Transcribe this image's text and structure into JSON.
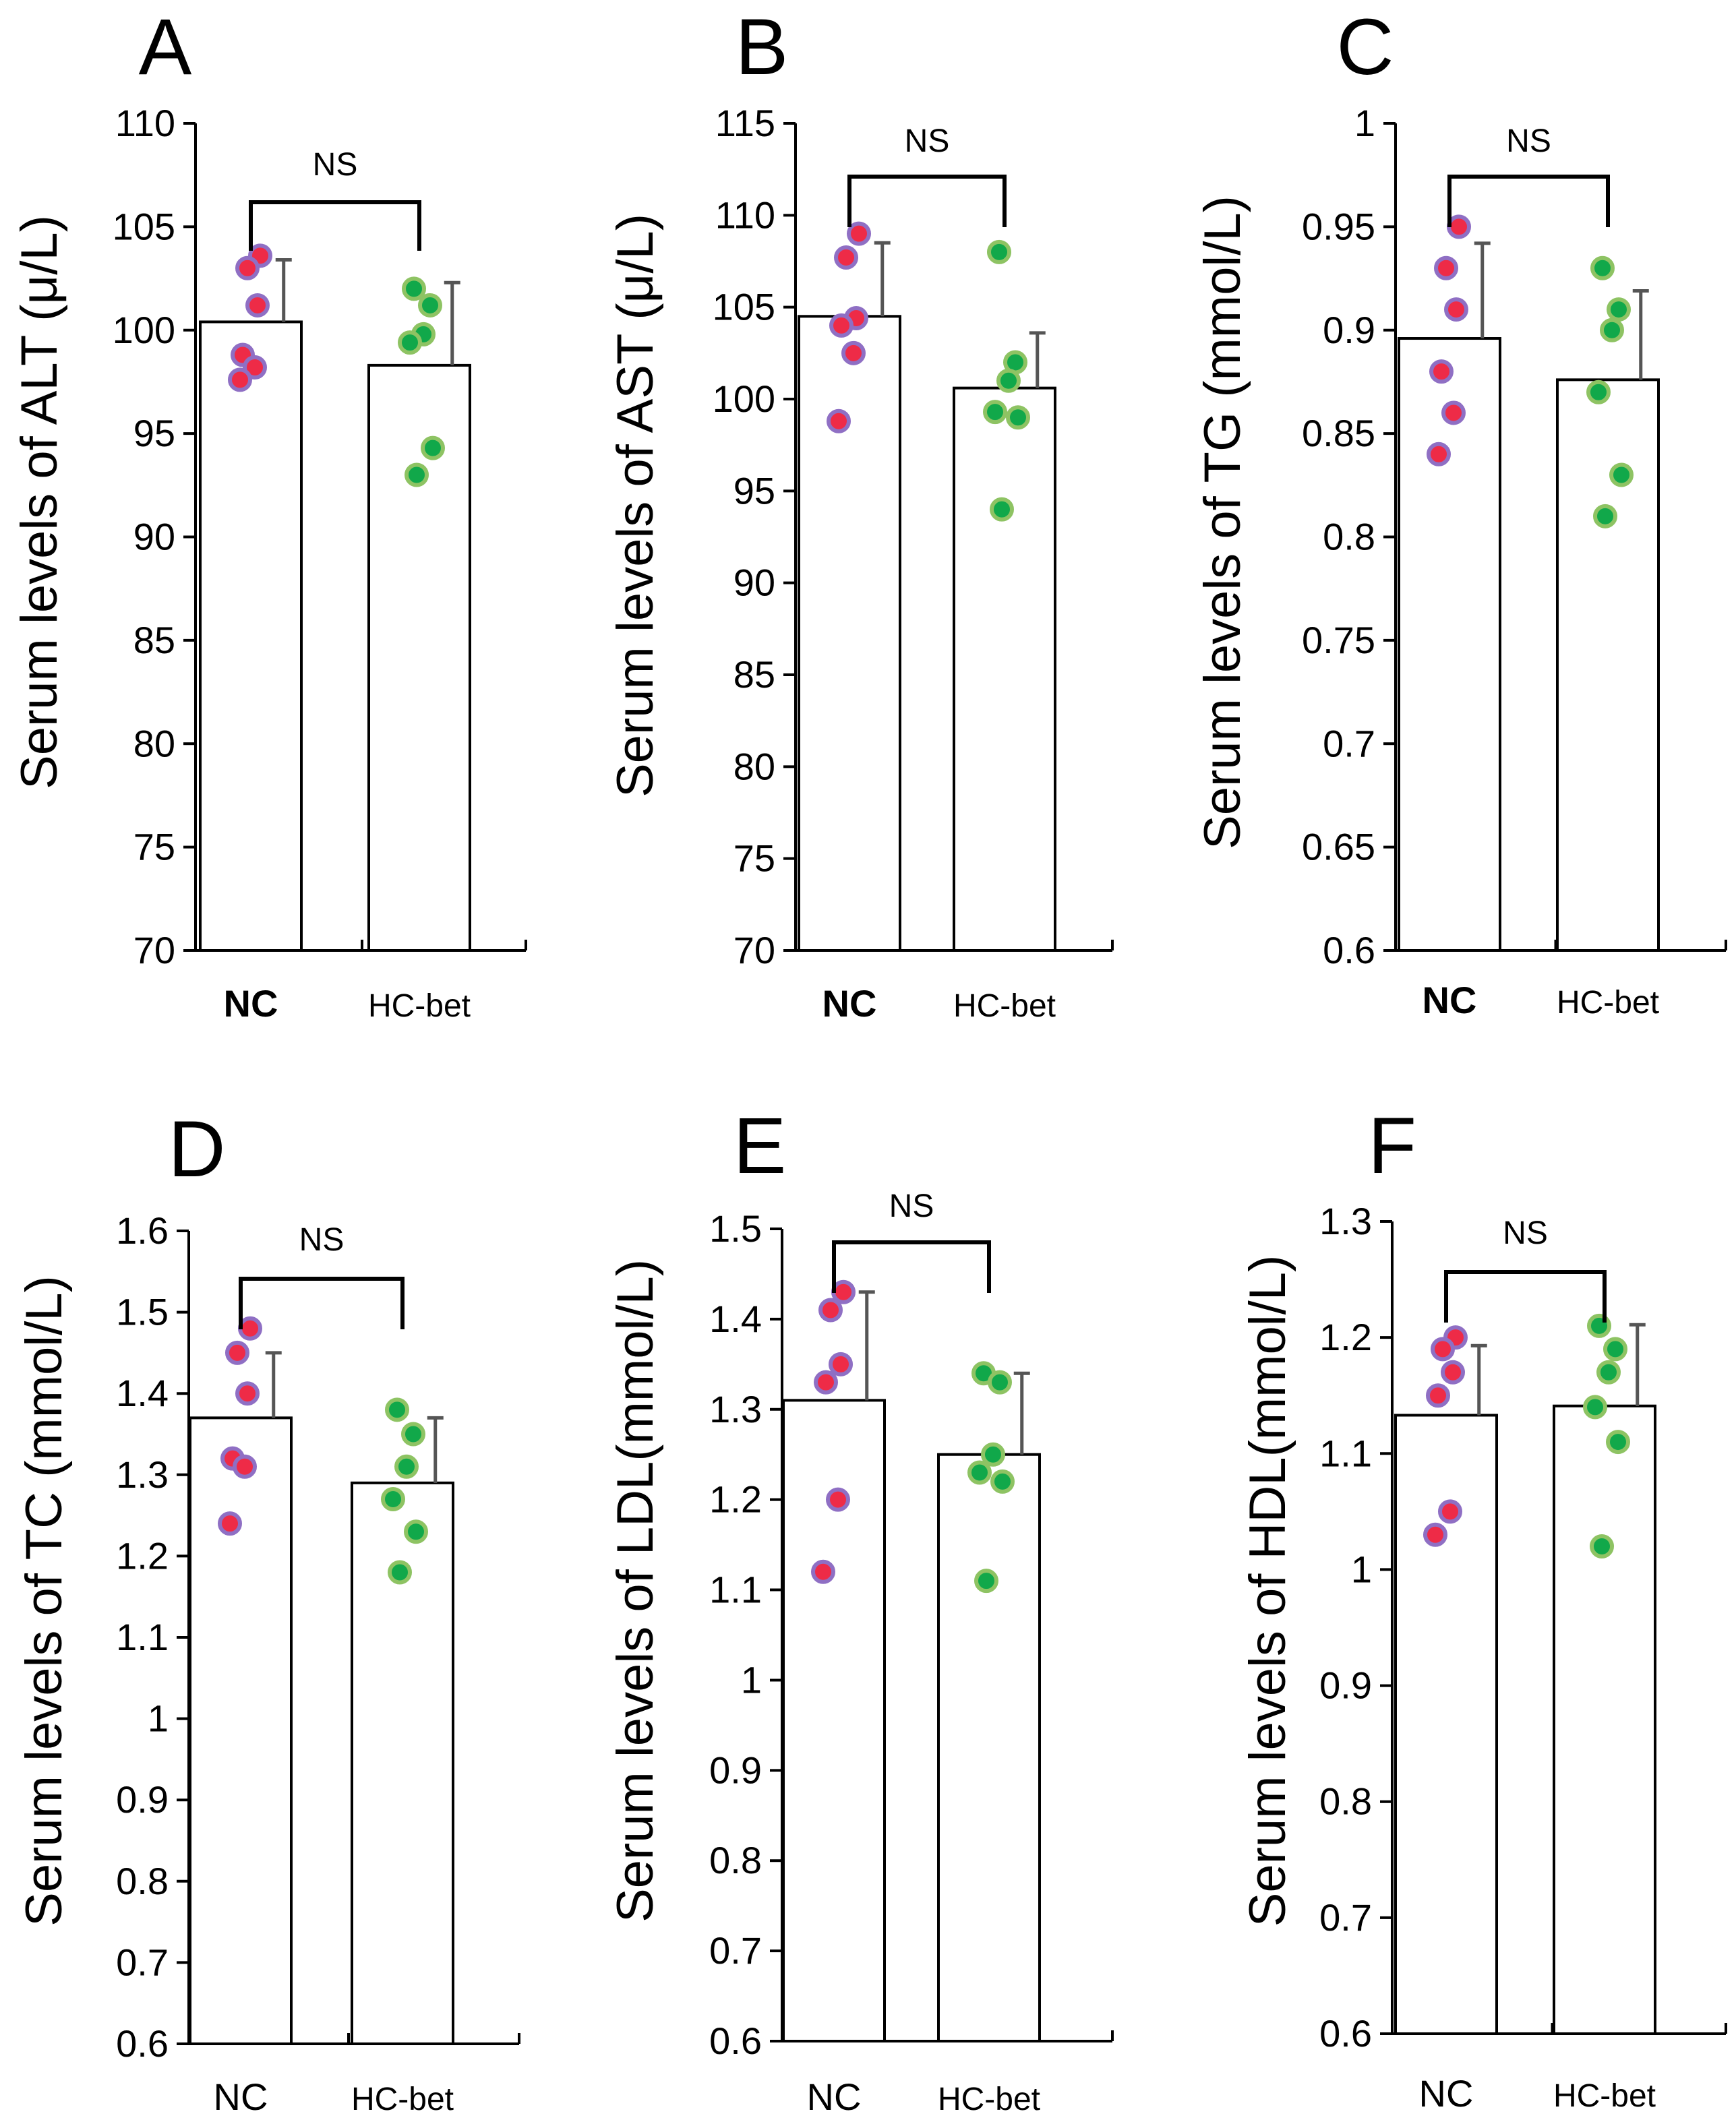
{
  "figure": {
    "panels": [
      "A",
      "B",
      "C",
      "D",
      "E",
      "F"
    ]
  },
  "colors": {
    "nc_dot_fill": "#ee2b47",
    "nc_dot_edge": "#8f6fc4",
    "hc_dot_fill": "#11a84a",
    "hc_dot_edge": "#8ec363",
    "bar_fill": "#ffffff",
    "axis": "#000000",
    "error_bar": "#555555"
  },
  "chart_data": [
    {
      "panel": "A",
      "type": "bar",
      "ylabel": "Serum levels of ALT (μ/L)",
      "ylim": [
        70,
        110
      ],
      "yticks": [
        70,
        75,
        80,
        85,
        90,
        95,
        100,
        105,
        110
      ],
      "ytick_labels": [
        "70",
        "75",
        "80",
        "85",
        "90",
        "95",
        "100",
        "105",
        "110"
      ],
      "categories": [
        "NC",
        "HC-bet"
      ],
      "means": [
        100.4,
        98.3
      ],
      "sd": [
        3.0,
        4.0
      ],
      "points": [
        [
          103.6,
          103.0,
          101.2,
          98.8,
          98.2,
          97.6
        ],
        [
          102.0,
          101.2,
          99.8,
          99.4,
          94.3,
          93.0
        ]
      ],
      "significance": "NS"
    },
    {
      "panel": "B",
      "type": "bar",
      "ylabel": "Serum levels of AST (μ/L)",
      "ylim": [
        70,
        115
      ],
      "yticks": [
        70,
        75,
        80,
        85,
        90,
        95,
        100,
        105,
        110,
        115
      ],
      "ytick_labels": [
        "70",
        "75",
        "80",
        "85",
        "90",
        "95",
        "100",
        "105",
        "110",
        "115"
      ],
      "categories": [
        "NC",
        "HC-bet"
      ],
      "means": [
        104.5,
        100.6
      ],
      "sd": [
        4.0,
        3.0
      ],
      "points": [
        [
          109.0,
          107.7,
          104.4,
          104.0,
          102.5,
          98.8
        ],
        [
          108.0,
          102.0,
          101.0,
          99.3,
          99.0,
          94.0
        ]
      ],
      "significance": "NS"
    },
    {
      "panel": "C",
      "type": "bar",
      "ylabel": "Serum levels of TG (mmol/L)",
      "ylim": [
        0.6,
        1.0
      ],
      "yticks": [
        0.6,
        0.65,
        0.7,
        0.75,
        0.8,
        0.85,
        0.9,
        0.95,
        1.0
      ],
      "ytick_labels": [
        "0.6",
        "0.65",
        "0.7",
        "0.75",
        "0.8",
        "0.85",
        "0.9",
        "0.95",
        "1"
      ],
      "categories": [
        "NC",
        "HC-bet"
      ],
      "means": [
        0.896,
        0.876
      ],
      "sd": [
        0.046,
        0.043
      ],
      "points": [
        [
          0.95,
          0.93,
          0.91,
          0.88,
          0.86,
          0.84
        ],
        [
          0.93,
          0.91,
          0.9,
          0.87,
          0.83,
          0.81
        ]
      ],
      "significance": "NS"
    },
    {
      "panel": "D",
      "type": "bar",
      "ylabel": "Serum levels of TC (mmol/L)",
      "ylim": [
        0.6,
        1.6
      ],
      "yticks": [
        0.6,
        0.7,
        0.8,
        0.9,
        1.0,
        1.1,
        1.2,
        1.3,
        1.4,
        1.5,
        1.6
      ],
      "ytick_labels": [
        "0.6",
        "0.7",
        "0.8",
        "0.9",
        "1",
        "1.1",
        "1.2",
        "1.3",
        "1.4",
        "1.5",
        "1.6"
      ],
      "categories": [
        "NC",
        "HC-bet"
      ],
      "means": [
        1.37,
        1.29
      ],
      "sd": [
        0.08,
        0.08
      ],
      "points": [
        [
          1.48,
          1.45,
          1.4,
          1.32,
          1.31,
          1.24
        ],
        [
          1.38,
          1.35,
          1.31,
          1.27,
          1.23,
          1.18
        ]
      ],
      "significance": "NS"
    },
    {
      "panel": "E",
      "type": "bar",
      "ylabel": "Serum levels of LDL(mmol/L)",
      "ylim": [
        0.6,
        1.5
      ],
      "yticks": [
        0.6,
        0.7,
        0.8,
        0.9,
        1.0,
        1.1,
        1.2,
        1.3,
        1.4,
        1.5
      ],
      "ytick_labels": [
        "0.6",
        "0.7",
        "0.8",
        "0.9",
        "1",
        "1.1",
        "1.2",
        "1.3",
        "1.4",
        "1.5"
      ],
      "categories": [
        "NC",
        "HC-bet"
      ],
      "means": [
        1.31,
        1.25
      ],
      "sd": [
        0.12,
        0.09
      ],
      "points": [
        [
          1.43,
          1.41,
          1.35,
          1.33,
          1.2,
          1.12
        ],
        [
          1.34,
          1.33,
          1.25,
          1.23,
          1.22,
          1.11
        ]
      ],
      "significance": "NS"
    },
    {
      "panel": "F",
      "type": "bar",
      "ylabel": "Serum levels of HDL(mmol/L)",
      "ylim": [
        0.6,
        1.3
      ],
      "yticks": [
        0.6,
        0.7,
        0.8,
        0.9,
        1.0,
        1.1,
        1.2,
        1.3
      ],
      "ytick_labels": [
        "0.6",
        "0.7",
        "0.8",
        "0.9",
        "1",
        "1.1",
        "1.2",
        "1.3"
      ],
      "categories": [
        "NC",
        "HC-bet"
      ],
      "means": [
        1.133,
        1.141
      ],
      "sd": [
        0.06,
        0.07
      ],
      "points": [
        [
          1.2,
          1.19,
          1.17,
          1.15,
          1.05,
          1.03
        ],
        [
          1.21,
          1.19,
          1.17,
          1.14,
          1.11,
          1.02
        ]
      ],
      "significance": "NS"
    }
  ]
}
